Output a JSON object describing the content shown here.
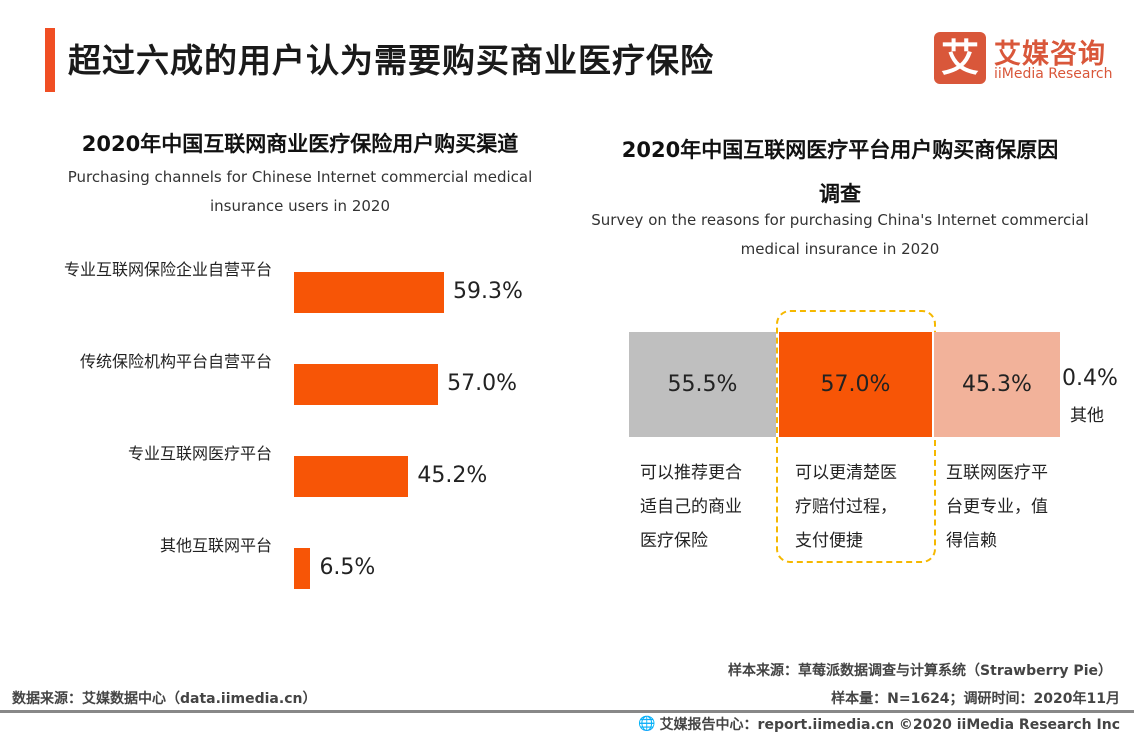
{
  "header": {
    "title": "超过六成的用户认为需要购买商业医疗保险",
    "logo_mark": "艾",
    "logo_cn": "艾媒咨询",
    "logo_en": "iiMedia Research",
    "accent_color": "#f04e23"
  },
  "chart_data": [
    {
      "type": "bar",
      "orientation": "horizontal",
      "title": "2020年中国互联网商业医疗保险用户购买渠道",
      "subtitle": [
        "Purchasing channels for Chinese Internet commercial medical",
        "insurance users in 2020"
      ],
      "categories": [
        "专业互联网保险企业自营平台",
        "传统保险机构平台自营平台",
        "专业互联网医疗平台",
        "其他互联网平台"
      ],
      "values": [
        59.3,
        57.0,
        45.2,
        6.5
      ],
      "labels": [
        "59.3%",
        "57.0%",
        "45.2%",
        "6.5%"
      ],
      "color": "#f75506",
      "grid": false
    },
    {
      "type": "bar",
      "orientation": "stacked-segments",
      "title": [
        "2020年中国互联网医疗平台用户购买商保原因",
        "调查"
      ],
      "subtitle": [
        "Survey on the reasons for purchasing China's Internet commercial",
        "medical insurance in 2020"
      ],
      "segments": [
        {
          "value": 55.5,
          "label": "55.5%",
          "reason": [
            "可以推荐更合",
            "适自己的商业",
            "医疗保险"
          ],
          "color": "#bfbfbf"
        },
        {
          "value": 57.0,
          "label": "57.0%",
          "reason": [
            "可以更清楚医",
            "疗赔付过程，",
            "支付便捷"
          ],
          "color": "#f75506",
          "highlighted": true
        },
        {
          "value": 45.3,
          "label": "45.3%",
          "reason": [
            "互联网医疗平",
            "台更专业，值",
            "得信赖"
          ],
          "color": "#f2b29a"
        },
        {
          "value": 0.4,
          "label": "0.4%",
          "reason": [
            "其他"
          ],
          "color": "#ffffff"
        }
      ],
      "highlight_color": "#f5b800"
    }
  ],
  "footer": {
    "sample_source": "样本来源：草莓派数据调查与计算系统（Strawberry Pie）",
    "data_source": "数据来源：艾媒数据中心（data.iimedia.cn）",
    "sample_size": "样本量：N=1624；调研时间：2020年11月",
    "report": "艾媒报告中心：report.iimedia.cn   ©2020  iiMedia Research  Inc"
  }
}
